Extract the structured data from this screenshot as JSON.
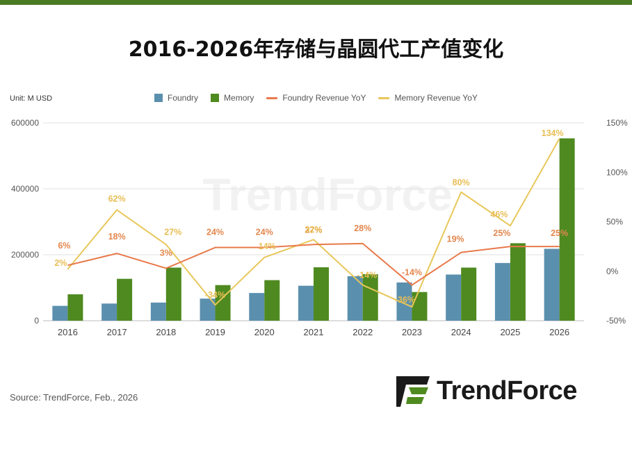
{
  "page": {
    "title": "2016-2026年存储与晶圆代工产值变化",
    "unit": "Unit: M USD",
    "source": "Source: TrendForce, Feb., 2026",
    "logo_text": "TrendForce",
    "watermark_text": "TrendForce"
  },
  "colors": {
    "foundry": "#5b8fae",
    "memory": "#4f8a20",
    "foundry_yoy": "#e8794a",
    "memory_yoy": "#e8c75a",
    "accent": "#4a7a22"
  },
  "chart_data": {
    "type": "bar",
    "categories": [
      "2016",
      "2017",
      "2018",
      "2019",
      "2020",
      "2021",
      "2022",
      "2023",
      "2024",
      "2025",
      "2026"
    ],
    "series": [
      {
        "name": "Foundry",
        "type": "bar",
        "axis": "left",
        "values": [
          45000,
          52000,
          55000,
          67000,
          84000,
          106000,
          135000,
          116000,
          140000,
          175000,
          218000
        ]
      },
      {
        "name": "Memory",
        "type": "bar",
        "axis": "left",
        "values": [
          80000,
          127000,
          161000,
          108000,
          123000,
          162000,
          141000,
          87000,
          161000,
          235000,
          553000
        ]
      },
      {
        "name": "Foundry Revenue YoY",
        "type": "line",
        "axis": "right",
        "values": [
          6,
          18,
          3,
          24,
          24,
          27,
          28,
          -14,
          19,
          25,
          25
        ],
        "labels": [
          "6%",
          "18%",
          "3%",
          "24%",
          "24%",
          "27%",
          "28%",
          "-14%",
          "19%",
          "25%",
          "25%"
        ]
      },
      {
        "name": "Memory Revenue YoY",
        "type": "line",
        "axis": "right",
        "values": [
          2,
          62,
          27,
          -34,
          14,
          32,
          -14,
          -36,
          80,
          46,
          134
        ],
        "labels": [
          "2%",
          "62%",
          "27%",
          "-34%",
          "14%",
          "32%",
          "-14%",
          "-36%",
          "80%",
          "46%",
          "134%"
        ]
      }
    ],
    "y_left": {
      "min": 0,
      "max": 600000,
      "ticks": [
        0,
        200000,
        400000,
        600000
      ],
      "tick_labels": [
        "0",
        "200000",
        "400000",
        "600000"
      ]
    },
    "y_right": {
      "min": -50,
      "max": 150,
      "ticks": [
        -50,
        0,
        50,
        100,
        150
      ],
      "tick_labels": [
        "-50%",
        "0%",
        "50%",
        "100%",
        "150%"
      ]
    },
    "legend_position": "top",
    "grid": true
  }
}
